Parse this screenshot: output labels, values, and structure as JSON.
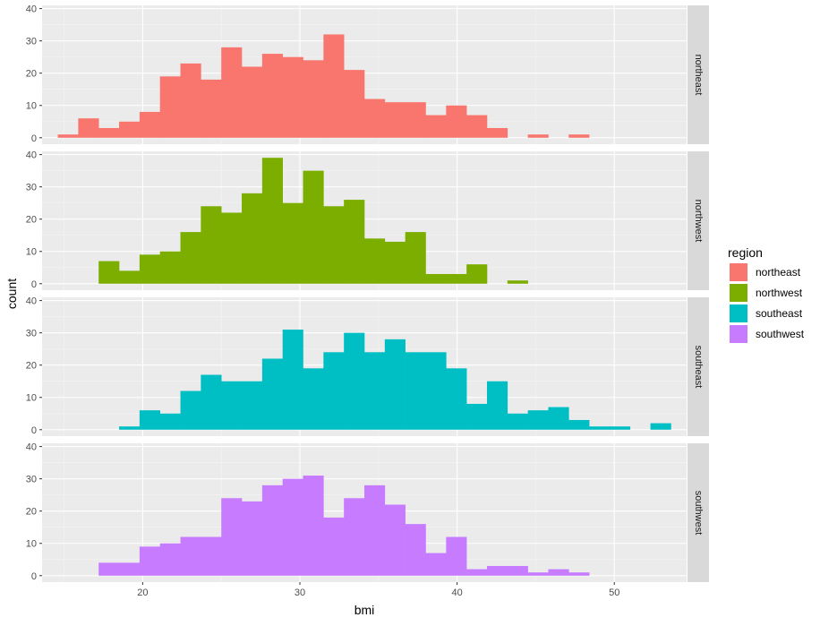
{
  "chart_data": {
    "type": "bar",
    "xlabel": "bmi",
    "ylabel": "count",
    "x_ticks": [
      20,
      30,
      40,
      50
    ],
    "y_ticks": [
      0,
      10,
      20,
      30,
      40
    ],
    "xlim": [
      13.6,
      54.6
    ],
    "ylim": [
      -2,
      41
    ],
    "bin_start": 14.6,
    "bin_width": 1.3,
    "grid": true,
    "legend": {
      "title": "region",
      "placement": "right",
      "items": [
        {
          "label": "northeast",
          "color": "#F8766D"
        },
        {
          "label": "northwest",
          "color": "#7CAE00"
        },
        {
          "label": "southeast",
          "color": "#00BFC4"
        },
        {
          "label": "southwest",
          "color": "#C77CFF"
        }
      ]
    },
    "series": [
      {
        "name": "northeast",
        "color": "#F8766D",
        "values": [
          1,
          6,
          3,
          5,
          8,
          19,
          23,
          18,
          28,
          22,
          26,
          25,
          24,
          32,
          21,
          12,
          11,
          11,
          7,
          10,
          7,
          3,
          0,
          1,
          0,
          1
        ]
      },
      {
        "name": "northwest",
        "color": "#7CAE00",
        "values": [
          0,
          0,
          7,
          4,
          9,
          10,
          16,
          24,
          22,
          28,
          39,
          25,
          35,
          24,
          26,
          14,
          13,
          16,
          3,
          3,
          6,
          0,
          1,
          0,
          0,
          0
        ]
      },
      {
        "name": "southeast",
        "color": "#00BFC4",
        "values": [
          0,
          0,
          0,
          1,
          6,
          5,
          12,
          17,
          15,
          15,
          22,
          31,
          19,
          24,
          30,
          24,
          28,
          24,
          24,
          19,
          8,
          15,
          5,
          6,
          7,
          3,
          1,
          1,
          0,
          2
        ]
      },
      {
        "name": "southwest",
        "color": "#C77CFF",
        "values": [
          0,
          0,
          4,
          4,
          9,
          10,
          12,
          12,
          24,
          23,
          28,
          30,
          31,
          18,
          24,
          28,
          22,
          16,
          7,
          12,
          2,
          3,
          3,
          1,
          2,
          1
        ]
      }
    ]
  }
}
